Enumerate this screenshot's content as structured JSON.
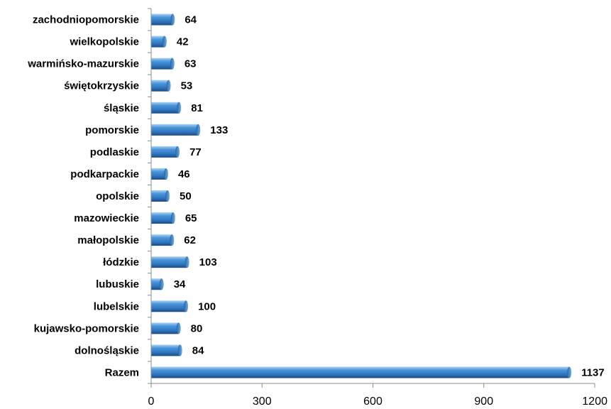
{
  "chart_data": {
    "type": "bar",
    "orientation": "horizontal",
    "categories": [
      "zachodniopomorskie",
      "wielkopolskie",
      "warmińsko-mazurskie",
      "świętokrzyskie",
      "śląskie",
      "pomorskie",
      "podlaskie",
      "podkarpackie",
      "opolskie",
      "mazowieckie",
      "małopolskie",
      "łódzkie",
      "lubuskie",
      "lubelskie",
      "kujawsko-pomorskie",
      "dolnośląskie",
      "Razem"
    ],
    "values": [
      64,
      42,
      63,
      53,
      81,
      133,
      77,
      46,
      50,
      65,
      62,
      103,
      34,
      100,
      80,
      84,
      1137
    ],
    "xlim": [
      0,
      1200
    ],
    "xticks": [
      0,
      300,
      600,
      900,
      1200
    ],
    "data_labels": true,
    "grid": false,
    "legend": false,
    "colors": {
      "bar_top": "#8ec3ee",
      "bar_mid": "#3b86cf",
      "bar_bottom": "#1c4f8a",
      "axis": "#8c8c8c"
    }
  }
}
